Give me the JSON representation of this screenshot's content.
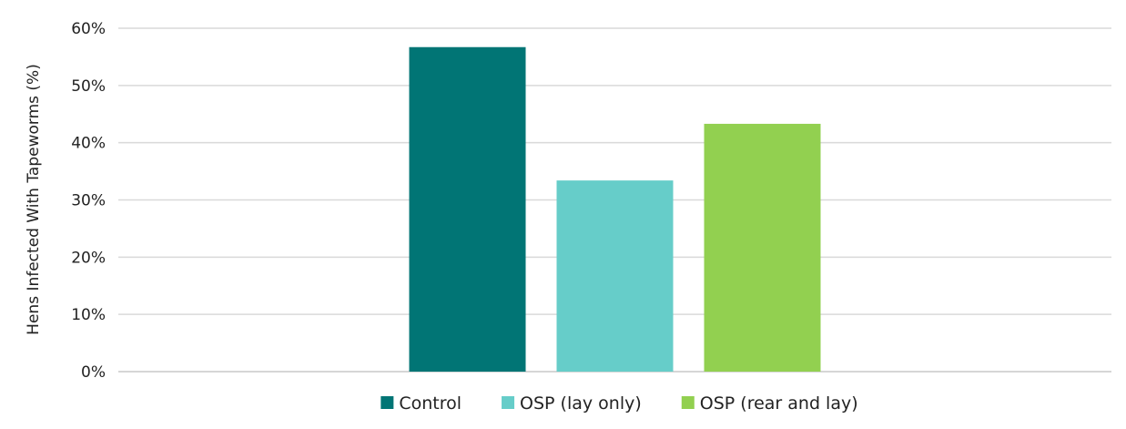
{
  "chart_data": {
    "type": "bar",
    "title": "",
    "xlabel": "",
    "ylabel": "Hens Infected With Tapeworms (%)",
    "ylim": [
      0,
      60
    ],
    "yticks": [
      0,
      10,
      20,
      30,
      40,
      50,
      60
    ],
    "ytick_suffix": "%",
    "grid": true,
    "legend_position": "bottom",
    "series": [
      {
        "name": "Control",
        "value": 56.7,
        "color": "#017575"
      },
      {
        "name": "OSP (lay only)",
        "value": 33.4,
        "color": "#66cdc9"
      },
      {
        "name": "OSP (rear and lay)",
        "value": 43.3,
        "color": "#92d050"
      }
    ]
  }
}
